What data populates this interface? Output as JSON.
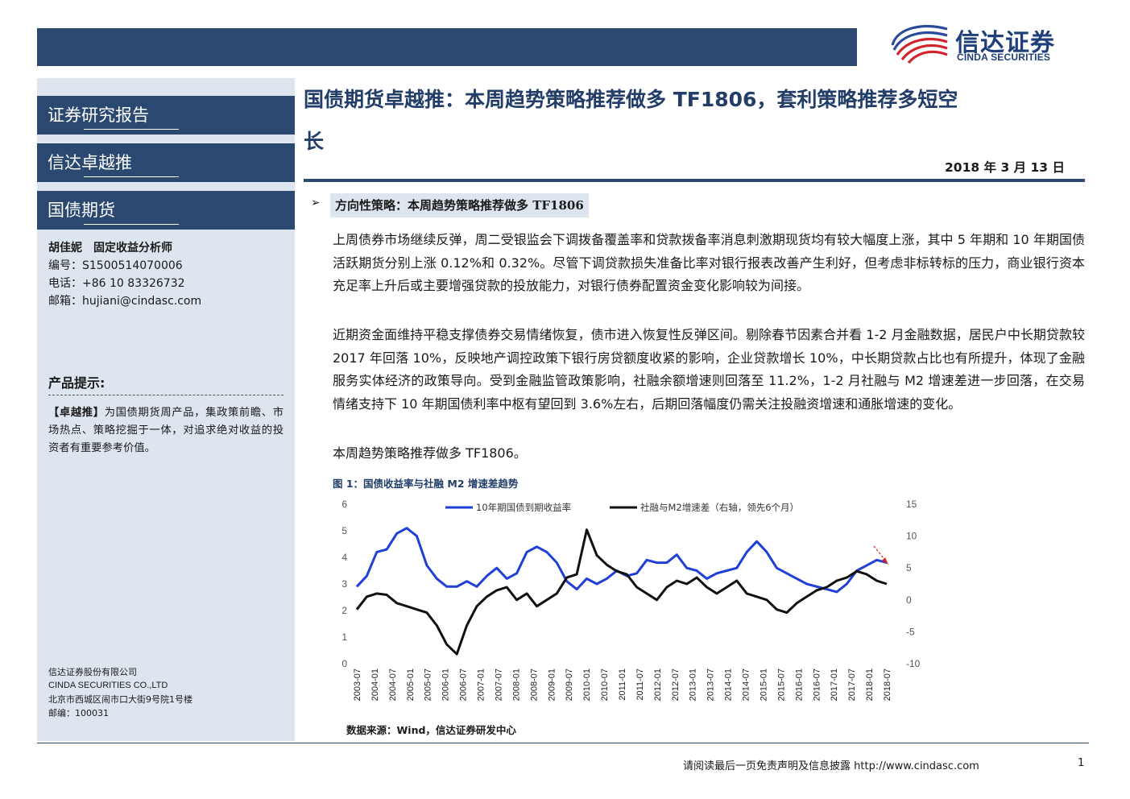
{
  "brand": {
    "name_cn": "信达证券",
    "name_en": "CINDA SECURITIES",
    "color_primary": "#2b4870",
    "color_accent": "#d2232a"
  },
  "sidebar": {
    "sections": [
      "证券研究报告",
      "信达卓越推",
      "国债期货"
    ],
    "analyst": {
      "name_title": "胡佳妮　固定收益分析师",
      "id_line": "编号：S1500514070006",
      "phone_line": "电话：+86 10 83326732",
      "email_line": "邮箱：hujiani@cindasc.com"
    },
    "hint_title": "产品提示:",
    "hint_bold": "【卓越推】",
    "hint_text": "为国债期货周产品，集政策前瞻、市场热点、策略挖掘于一体，对追求绝对收益的投资者有重要参考价值。",
    "company": {
      "name_cn": "信达证券股份有限公司",
      "name_en": "CINDA SECURITIES CO.,LTD",
      "address": "北京市西城区闹市口大街9号院1号楼",
      "postcode": "邮编：100031"
    }
  },
  "report": {
    "title_line1": "国债期货卓越推：本周趋势策略推荐做多 TF1806，套利策略推荐多短空",
    "title_line2": "长",
    "date": "2018 年 3 月 13 日",
    "bullet": "➢",
    "strategy_heading": "方向性策略：本周趋势策略推荐做多 TF1806",
    "paragraphs": [
      "上周债券市场继续反弹，周二受银监会下调拨备覆盖率和贷款拨备率消息刺激期现货均有较大幅度上涨，其中 5 年期和 10 年期国债活跃期货分别上涨 0.12%和 0.32%。尽管下调贷款损失准备比率对银行报表改善产生利好，但考虑非标转标的压力，商业银行资本充足率上升后或主要增强贷款的投放能力，对银行债券配置资金变化影响较为间接。",
      "近期资金面维持平稳支撑债券交易情绪恢复，债市进入恢复性反弹区间。剔除春节因素合并看 1-2 月金融数据，居民户中长期贷款较 2017 年回落 10%，反映地产调控政策下银行房贷额度收紧的影响，企业贷款增长 10%，中长期贷款占比也有所提升，体现了金融服务实体经济的政策导向。受到金融监管政策影响，社融余额增速则回落至 11.2%，1-2 月社融与 M2 增速差进一步回落，在交易情绪支持下 10 年期国债利率中枢有望回到 3.6%左右，后期回落幅度仍需关注投融资增速和通胀增速的变化。",
      "本周趋势策略推荐做多 TF1806。"
    ],
    "figure_caption": "图 1：国债收益率与社融 M2 增速差趋势",
    "source": "数据来源：Wind，信达证券研发中心"
  },
  "footer": {
    "disclaimer": "请阅读最后一页免责声明及信息披露 http://www.cindasc.com",
    "page_number": "1"
  },
  "chart_data": {
    "type": "line",
    "y_left": {
      "ticks": [
        "6",
        "5",
        "4",
        "3",
        "2",
        "1",
        "0"
      ],
      "ylim": [
        0,
        6
      ]
    },
    "y_right": {
      "ticks": [
        "15",
        "10",
        "5",
        "0",
        "-5",
        "-10"
      ],
      "ylim": [
        -10,
        15
      ]
    },
    "x_ticks": [
      "2003-07",
      "2004-01",
      "2004-07",
      "2005-01",
      "2005-07",
      "2006-01",
      "2006-07",
      "2007-01",
      "2007-07",
      "2008-01",
      "2008-07",
      "2009-01",
      "2009-07",
      "2010-01",
      "2010-07",
      "2011-01",
      "2011-07",
      "2012-01",
      "2012-07",
      "2013-01",
      "2013-07",
      "2014-01",
      "2014-07",
      "2015-01",
      "2015-07",
      "2016-01",
      "2016-07",
      "2017-01",
      "2017-07",
      "2018-01",
      "2018-07"
    ],
    "series": [
      {
        "name": "10年期国债到期收益率",
        "axis": "left",
        "color": "#1f3fd6",
        "values": [
          2.9,
          3.3,
          4.2,
          4.3,
          4.9,
          5.1,
          4.8,
          3.7,
          3.2,
          2.9,
          2.9,
          3.1,
          2.9,
          3.3,
          3.6,
          3.2,
          3.4,
          4.2,
          4.4,
          4.2,
          3.8,
          3.1,
          2.8,
          3.2,
          3.0,
          3.2,
          3.5,
          3.3,
          3.4,
          3.9,
          3.8,
          3.8,
          4.1,
          3.6,
          3.5,
          3.2,
          3.4,
          3.5,
          3.6,
          4.2,
          4.6,
          4.2,
          3.6,
          3.4,
          3.2,
          3.0,
          2.9,
          2.8,
          2.7,
          3.0,
          3.5,
          3.7,
          3.9,
          3.8
        ]
      },
      {
        "name": "社融与M2增速差（右轴，领先6个月）",
        "axis": "right",
        "color": "#111111",
        "values": [
          -1.5,
          0.5,
          1.0,
          0.8,
          -0.5,
          -1.0,
          -1.5,
          -2.0,
          -4.0,
          -7.0,
          -8.5,
          -4.0,
          -1.0,
          0.5,
          1.5,
          2.0,
          0.0,
          1.0,
          -1.0,
          0.0,
          1.0,
          3.5,
          4.0,
          11.0,
          7.0,
          5.5,
          4.5,
          4.0,
          2.0,
          1.0,
          0.0,
          2.0,
          3.0,
          2.5,
          3.5,
          2.0,
          1.0,
          2.0,
          3.0,
          1.0,
          0.5,
          0.0,
          -1.5,
          -2.0,
          -0.5,
          0.5,
          1.5,
          2.0,
          3.0,
          3.5,
          4.5,
          4.0,
          3.0,
          2.5
        ]
      }
    ],
    "xlabel": "",
    "ylabel": "",
    "grid": false,
    "legend": "top-center",
    "annotation": "red dashed arrow pointing down-right at end of series"
  }
}
